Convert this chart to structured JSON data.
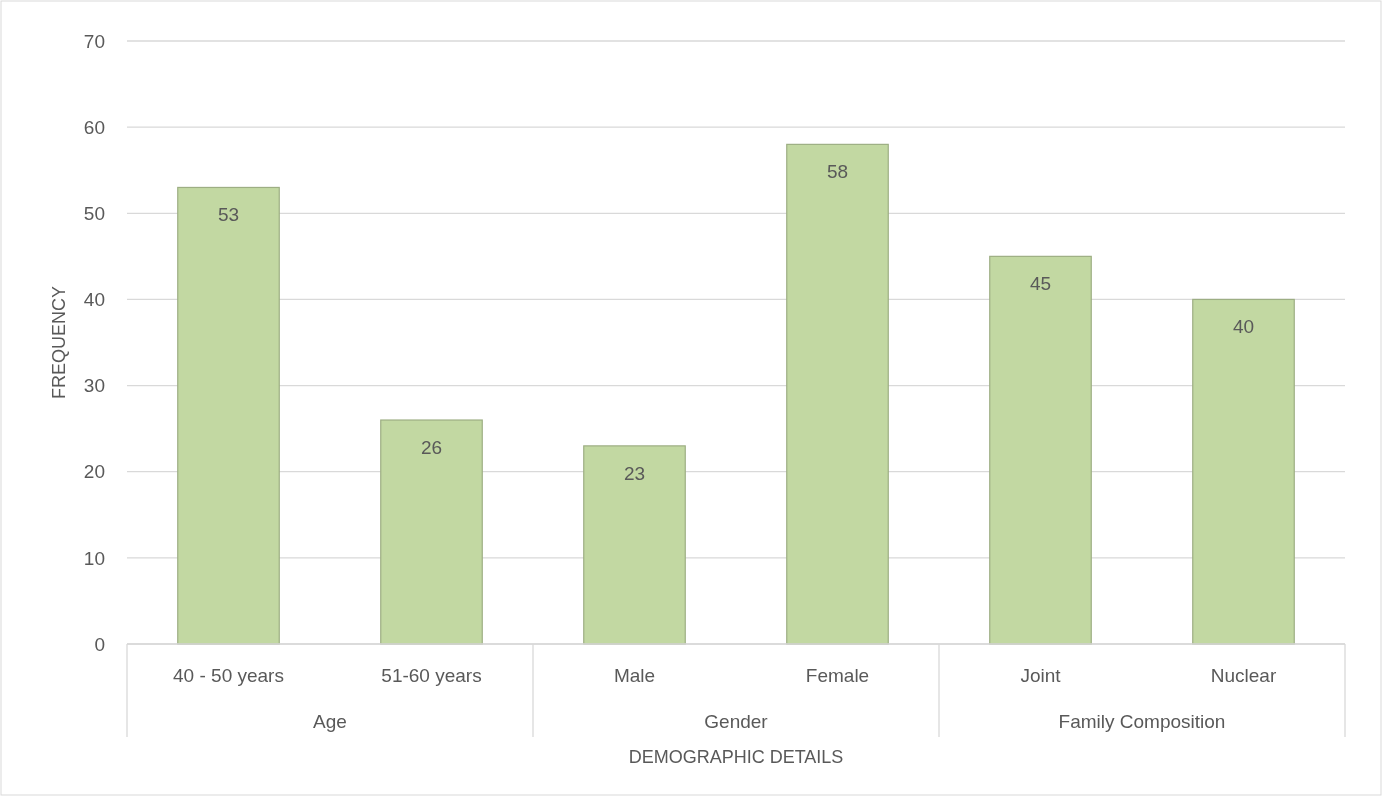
{
  "chart_data": {
    "type": "bar",
    "xlabel": "DEMOGRAPHIC DETAILS",
    "ylabel": "FREQUENCY",
    "categories": [
      "40 - 50 years",
      "51-60 years",
      "Male",
      "Female",
      "Joint",
      "Nuclear"
    ],
    "values": [
      53,
      26,
      23,
      58,
      45,
      40
    ],
    "color": "#c2d8a2",
    "ylim": [
      0,
      70
    ],
    "yticks": [
      0,
      10,
      20,
      30,
      40,
      50,
      60,
      70
    ],
    "grid": "y",
    "data_labels": true,
    "annotations": [
      "Age",
      "Gender",
      "Family Composition"
    ]
  }
}
